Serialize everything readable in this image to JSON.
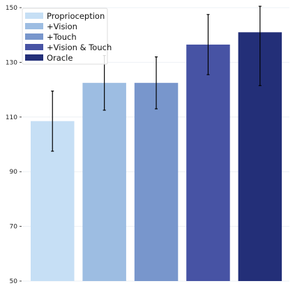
{
  "chart_data": {
    "type": "bar",
    "title": "",
    "xlabel": "",
    "ylabel": "",
    "categories": [
      "Proprioception",
      "+Vision",
      "+Touch",
      "+Vision & Touch",
      "Oracle"
    ],
    "values": [
      108.5,
      122.5,
      122.5,
      136.5,
      141
    ],
    "errors": [
      11,
      10,
      9.5,
      11,
      19.5
    ],
    "colors": [
      "#c6dff5",
      "#9dbde2",
      "#7896cc",
      "#4753a4",
      "#232f78"
    ],
    "ylim": [
      50,
      150
    ],
    "yticks": [
      50,
      70,
      90,
      110,
      130,
      150
    ],
    "grid": true,
    "legend_position": "top-left"
  }
}
